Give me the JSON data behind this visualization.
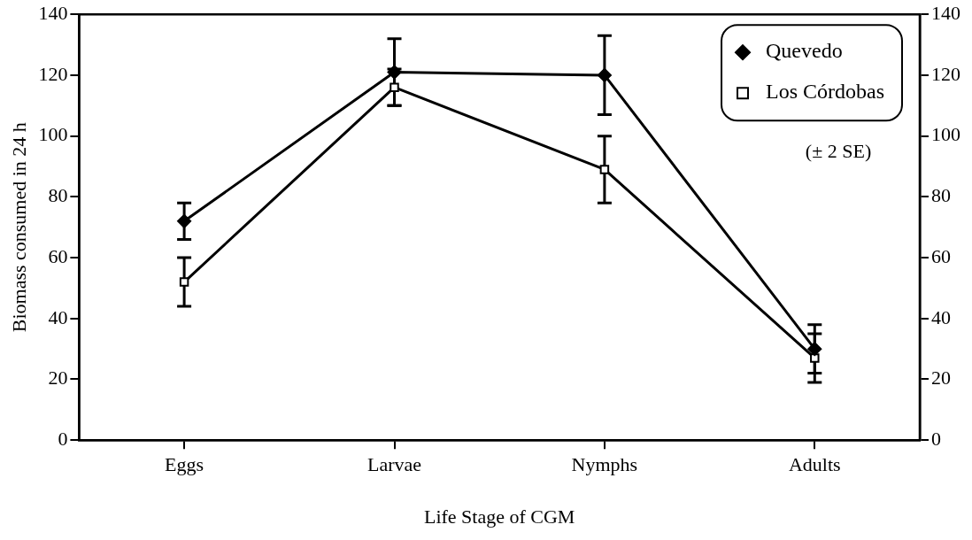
{
  "chart_data": {
    "type": "line",
    "xlabel": "Life Stage of CGM",
    "ylabel": "Biomass consumed in 24 h",
    "categories": [
      "Eggs",
      "Larvae",
      "Nymphs",
      "Adults"
    ],
    "series": [
      {
        "name": "Quevedo",
        "color": "#000000",
        "marker": "diamond",
        "values": [
          72,
          121,
          120,
          30
        ],
        "errors": [
          6,
          11,
          13,
          8
        ]
      },
      {
        "name": "Los Córdobas",
        "color": "#000000",
        "marker": "square",
        "values": [
          52,
          116,
          89,
          27
        ],
        "errors": [
          8,
          6,
          11,
          8
        ]
      }
    ],
    "ylim": [
      0,
      140
    ],
    "yticks": [
      0,
      20,
      40,
      60,
      80,
      100,
      120,
      140
    ],
    "y2lim": [
      0,
      140
    ],
    "y2ticks": [
      0,
      20,
      40,
      60,
      80,
      100,
      120,
      140
    ],
    "grid": false,
    "legend": "top right",
    "line_style": "solid",
    "annotations": [
      "(± 2 SE)"
    ]
  }
}
